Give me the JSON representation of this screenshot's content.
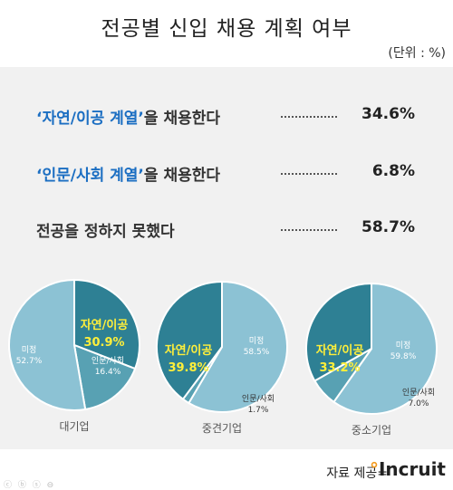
{
  "title": "전공별 신입 채용 계획 여부",
  "unit": "(단위 : %)",
  "summary": [
    {
      "highlight": "‘자연/이공 계열’",
      "rest": "을 채용한다",
      "value": "34.6%"
    },
    {
      "highlight": "‘인문/사회 계열’",
      "rest": "을 채용한다",
      "value": "6.8%"
    },
    {
      "highlight": "",
      "rest": "전공을 정하지 못했다",
      "value": "58.7%"
    }
  ],
  "colors": {
    "science": "#2e8094",
    "humanities": "#58a1b3",
    "undecided": "#8cc2d4",
    "highlight_text": "#ffef3a",
    "label_blue": "#1b6ec2"
  },
  "chart_data": [
    {
      "type": "pie",
      "name": "대기업",
      "slices": [
        {
          "label": "자연/이공",
          "value": 30.9,
          "display": "30.9%"
        },
        {
          "label": "인문/사회",
          "value": 16.4,
          "display": "16.4%"
        },
        {
          "label": "미정",
          "value": 52.7,
          "display": "52.7%"
        }
      ]
    },
    {
      "type": "pie",
      "name": "중견기업",
      "slices": [
        {
          "label": "미정",
          "value": 58.5,
          "display": "58.5%"
        },
        {
          "label": "인문/사회",
          "value": 1.7,
          "display": "1.7%"
        },
        {
          "label": "자연/이공",
          "value": 39.8,
          "display": "39.8%"
        }
      ]
    },
    {
      "type": "pie",
      "name": "중소기업",
      "slices": [
        {
          "label": "미정",
          "value": 59.8,
          "display": "59.8%"
        },
        {
          "label": "인문/사회",
          "value": 7.0,
          "display": "7.0%"
        },
        {
          "label": "자연/이공",
          "value": 33.2,
          "display": "33.2%"
        }
      ]
    }
  ],
  "footer": {
    "source": "자료 제공=",
    "logo_dot": "°",
    "logo_text": "Incruit"
  },
  "corner_icons": "ⓒ ⓑ ⓢ ⊖"
}
